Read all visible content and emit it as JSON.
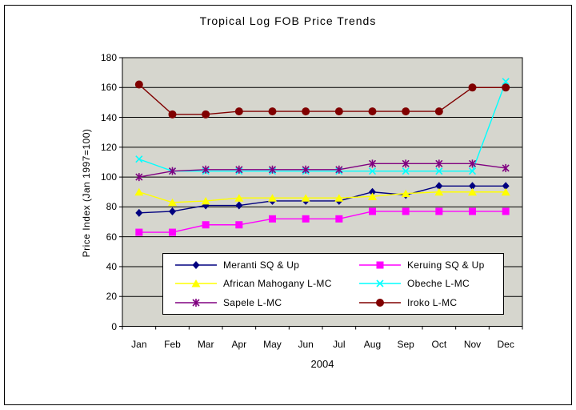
{
  "window": {
    "title": "Tropical Log FOB Price Trends"
  },
  "chart_data": {
    "type": "line",
    "title": "Tropical Log FOB Price Trends",
    "xlabel": "2004",
    "ylabel": "Price Index (Jan 1997=100)",
    "ylim": [
      0,
      180
    ],
    "y_ticks": [
      0,
      20,
      40,
      60,
      80,
      100,
      120,
      140,
      160,
      180
    ],
    "grid": true,
    "plot_bg": "#D6D6CE",
    "axis_color": "#000000",
    "legend_position": "inside-bottom",
    "categories": [
      "Jan",
      "Feb",
      "Mar",
      "Apr",
      "May",
      "Jun",
      "Jul",
      "Aug",
      "Sep",
      "Oct",
      "Nov",
      "Dec"
    ],
    "series": [
      {
        "name": "Meranti SQ & Up",
        "color": "#000080",
        "marker": "diamond",
        "values": [
          76,
          77,
          81,
          81,
          84,
          84,
          84,
          90,
          88,
          94,
          94,
          94
        ]
      },
      {
        "name": "Keruing SQ & Up",
        "color": "#FF00FF",
        "marker": "square",
        "values": [
          63,
          63,
          68,
          68,
          72,
          72,
          72,
          77,
          77,
          77,
          77,
          77
        ]
      },
      {
        "name": "African Mahogany L-MC",
        "color": "#FFFF00",
        "marker": "triangle",
        "values": [
          90,
          83,
          84,
          86,
          86,
          86,
          86,
          87,
          89,
          90,
          90,
          90
        ]
      },
      {
        "name": "Obeche L-MC",
        "color": "#00FFFF",
        "marker": "x",
        "values": [
          112,
          104,
          104,
          104,
          104,
          104,
          104,
          104,
          104,
          104,
          104,
          164
        ]
      },
      {
        "name": "Sapele L-MC",
        "color": "#800080",
        "marker": "star",
        "values": [
          100,
          104,
          105,
          105,
          105,
          105,
          105,
          109,
          109,
          109,
          109,
          106
        ]
      },
      {
        "name": "Iroko L-MC",
        "color": "#800000",
        "marker": "circle",
        "values": [
          162,
          142,
          142,
          144,
          144,
          144,
          144,
          144,
          144,
          144,
          160,
          160
        ]
      }
    ]
  }
}
